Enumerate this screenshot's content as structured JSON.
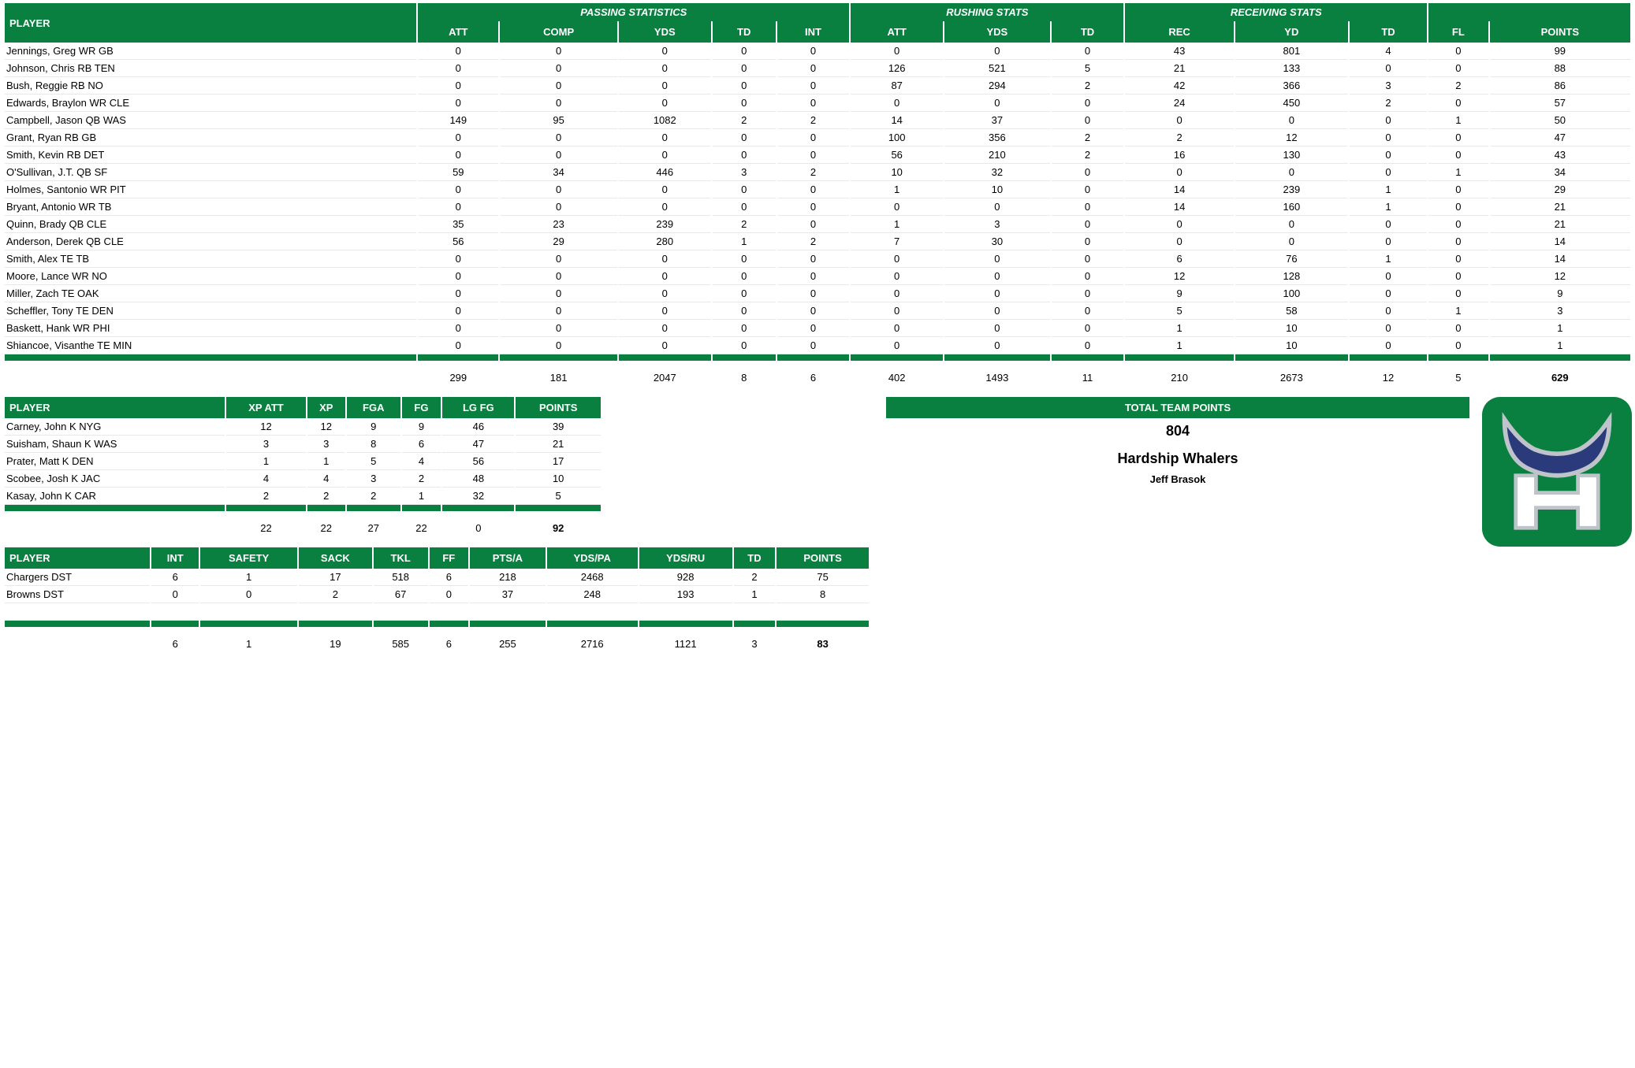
{
  "colors": {
    "green": "#0a8040",
    "navy": "#2a3a7a",
    "silver": "#bfc4cb",
    "white": "#ffffff"
  },
  "offense": {
    "groups": [
      {
        "label": "PASSING STATISTICS",
        "span": 5
      },
      {
        "label": "RUSHING STATS",
        "span": 3
      },
      {
        "label": "RECEIVING STATS",
        "span": 3
      },
      {
        "label": "",
        "span": 2
      }
    ],
    "headers": [
      "PLAYER",
      "ATT",
      "COMP",
      "YDS",
      "TD",
      "INT",
      "ATT",
      "YDS",
      "TD",
      "REC",
      "YD",
      "TD",
      "FL",
      "POINTS"
    ],
    "rows": [
      [
        "Jennings, Greg WR GB",
        0,
        0,
        0,
        0,
        0,
        0,
        0,
        0,
        43,
        801,
        4,
        0,
        99
      ],
      [
        "Johnson, Chris RB TEN",
        0,
        0,
        0,
        0,
        0,
        126,
        521,
        5,
        21,
        133,
        0,
        0,
        88
      ],
      [
        "Bush, Reggie RB NO",
        0,
        0,
        0,
        0,
        0,
        87,
        294,
        2,
        42,
        366,
        3,
        2,
        86
      ],
      [
        "Edwards, Braylon WR CLE",
        0,
        0,
        0,
        0,
        0,
        0,
        0,
        0,
        24,
        450,
        2,
        0,
        57
      ],
      [
        "Campbell, Jason QB WAS",
        149,
        95,
        1082,
        2,
        2,
        14,
        37,
        0,
        0,
        0,
        0,
        1,
        50
      ],
      [
        "Grant, Ryan RB GB",
        0,
        0,
        0,
        0,
        0,
        100,
        356,
        2,
        2,
        12,
        0,
        0,
        47
      ],
      [
        "Smith, Kevin RB DET",
        0,
        0,
        0,
        0,
        0,
        56,
        210,
        2,
        16,
        130,
        0,
        0,
        43
      ],
      [
        "O'Sullivan, J.T. QB SF",
        59,
        34,
        446,
        3,
        2,
        10,
        32,
        0,
        0,
        0,
        0,
        1,
        34
      ],
      [
        "Holmes, Santonio WR PIT",
        0,
        0,
        0,
        0,
        0,
        1,
        10,
        0,
        14,
        239,
        1,
        0,
        29
      ],
      [
        "Bryant, Antonio WR TB",
        0,
        0,
        0,
        0,
        0,
        0,
        0,
        0,
        14,
        160,
        1,
        0,
        21
      ],
      [
        "Quinn, Brady QB CLE",
        35,
        23,
        239,
        2,
        0,
        1,
        3,
        0,
        0,
        0,
        0,
        0,
        21
      ],
      [
        "Anderson, Derek QB CLE",
        56,
        29,
        280,
        1,
        2,
        7,
        30,
        0,
        0,
        0,
        0,
        0,
        14
      ],
      [
        "Smith, Alex TE TB",
        0,
        0,
        0,
        0,
        0,
        0,
        0,
        0,
        6,
        76,
        1,
        0,
        14
      ],
      [
        "Moore, Lance WR NO",
        0,
        0,
        0,
        0,
        0,
        0,
        0,
        0,
        12,
        128,
        0,
        0,
        12
      ],
      [
        "Miller, Zach TE OAK",
        0,
        0,
        0,
        0,
        0,
        0,
        0,
        0,
        9,
        100,
        0,
        0,
        9
      ],
      [
        "Scheffler, Tony TE DEN",
        0,
        0,
        0,
        0,
        0,
        0,
        0,
        0,
        5,
        58,
        0,
        1,
        3
      ],
      [
        "Baskett, Hank WR PHI",
        0,
        0,
        0,
        0,
        0,
        0,
        0,
        0,
        1,
        10,
        0,
        0,
        1
      ],
      [
        "Shiancoe, Visanthe TE MIN",
        0,
        0,
        0,
        0,
        0,
        0,
        0,
        0,
        1,
        10,
        0,
        0,
        1
      ]
    ],
    "totals": [
      "",
      299,
      181,
      2047,
      8,
      6,
      402,
      1493,
      11,
      210,
      2673,
      12,
      5,
      629
    ]
  },
  "kicking": {
    "headers": [
      "PLAYER",
      "XP ATT",
      "XP",
      "FGA",
      "FG",
      "LG FG",
      "POINTS"
    ],
    "rows": [
      [
        "Carney, John K NYG",
        12,
        12,
        9,
        9,
        46,
        39
      ],
      [
        "Suisham, Shaun K WAS",
        3,
        3,
        8,
        6,
        47,
        21
      ],
      [
        "Prater, Matt K DEN",
        1,
        1,
        5,
        4,
        56,
        17
      ],
      [
        "Scobee, Josh K JAC",
        4,
        4,
        3,
        2,
        48,
        10
      ],
      [
        "Kasay, John K CAR",
        2,
        2,
        2,
        1,
        32,
        5
      ]
    ],
    "totals": [
      "",
      22,
      22,
      27,
      22,
      0,
      92
    ]
  },
  "defense": {
    "headers": [
      "PLAYER",
      "INT",
      "SAFETY",
      "SACK",
      "TKL",
      "FF",
      "PTS/A",
      "YDS/PA",
      "YDS/RU",
      "TD",
      "POINTS"
    ],
    "rows": [
      [
        "Chargers DST",
        6,
        1,
        17,
        518,
        6,
        218,
        2468,
        928,
        2,
        75
      ],
      [
        "Browns DST",
        0,
        0,
        2,
        67,
        0,
        37,
        248,
        193,
        1,
        8
      ]
    ],
    "totals": [
      "",
      6,
      1,
      19,
      585,
      6,
      255,
      2716,
      1121,
      3,
      83
    ]
  },
  "team": {
    "title": "TOTAL TEAM POINTS",
    "points": "804",
    "name": "Hardship Whalers",
    "owner": "Jeff Brasok"
  }
}
